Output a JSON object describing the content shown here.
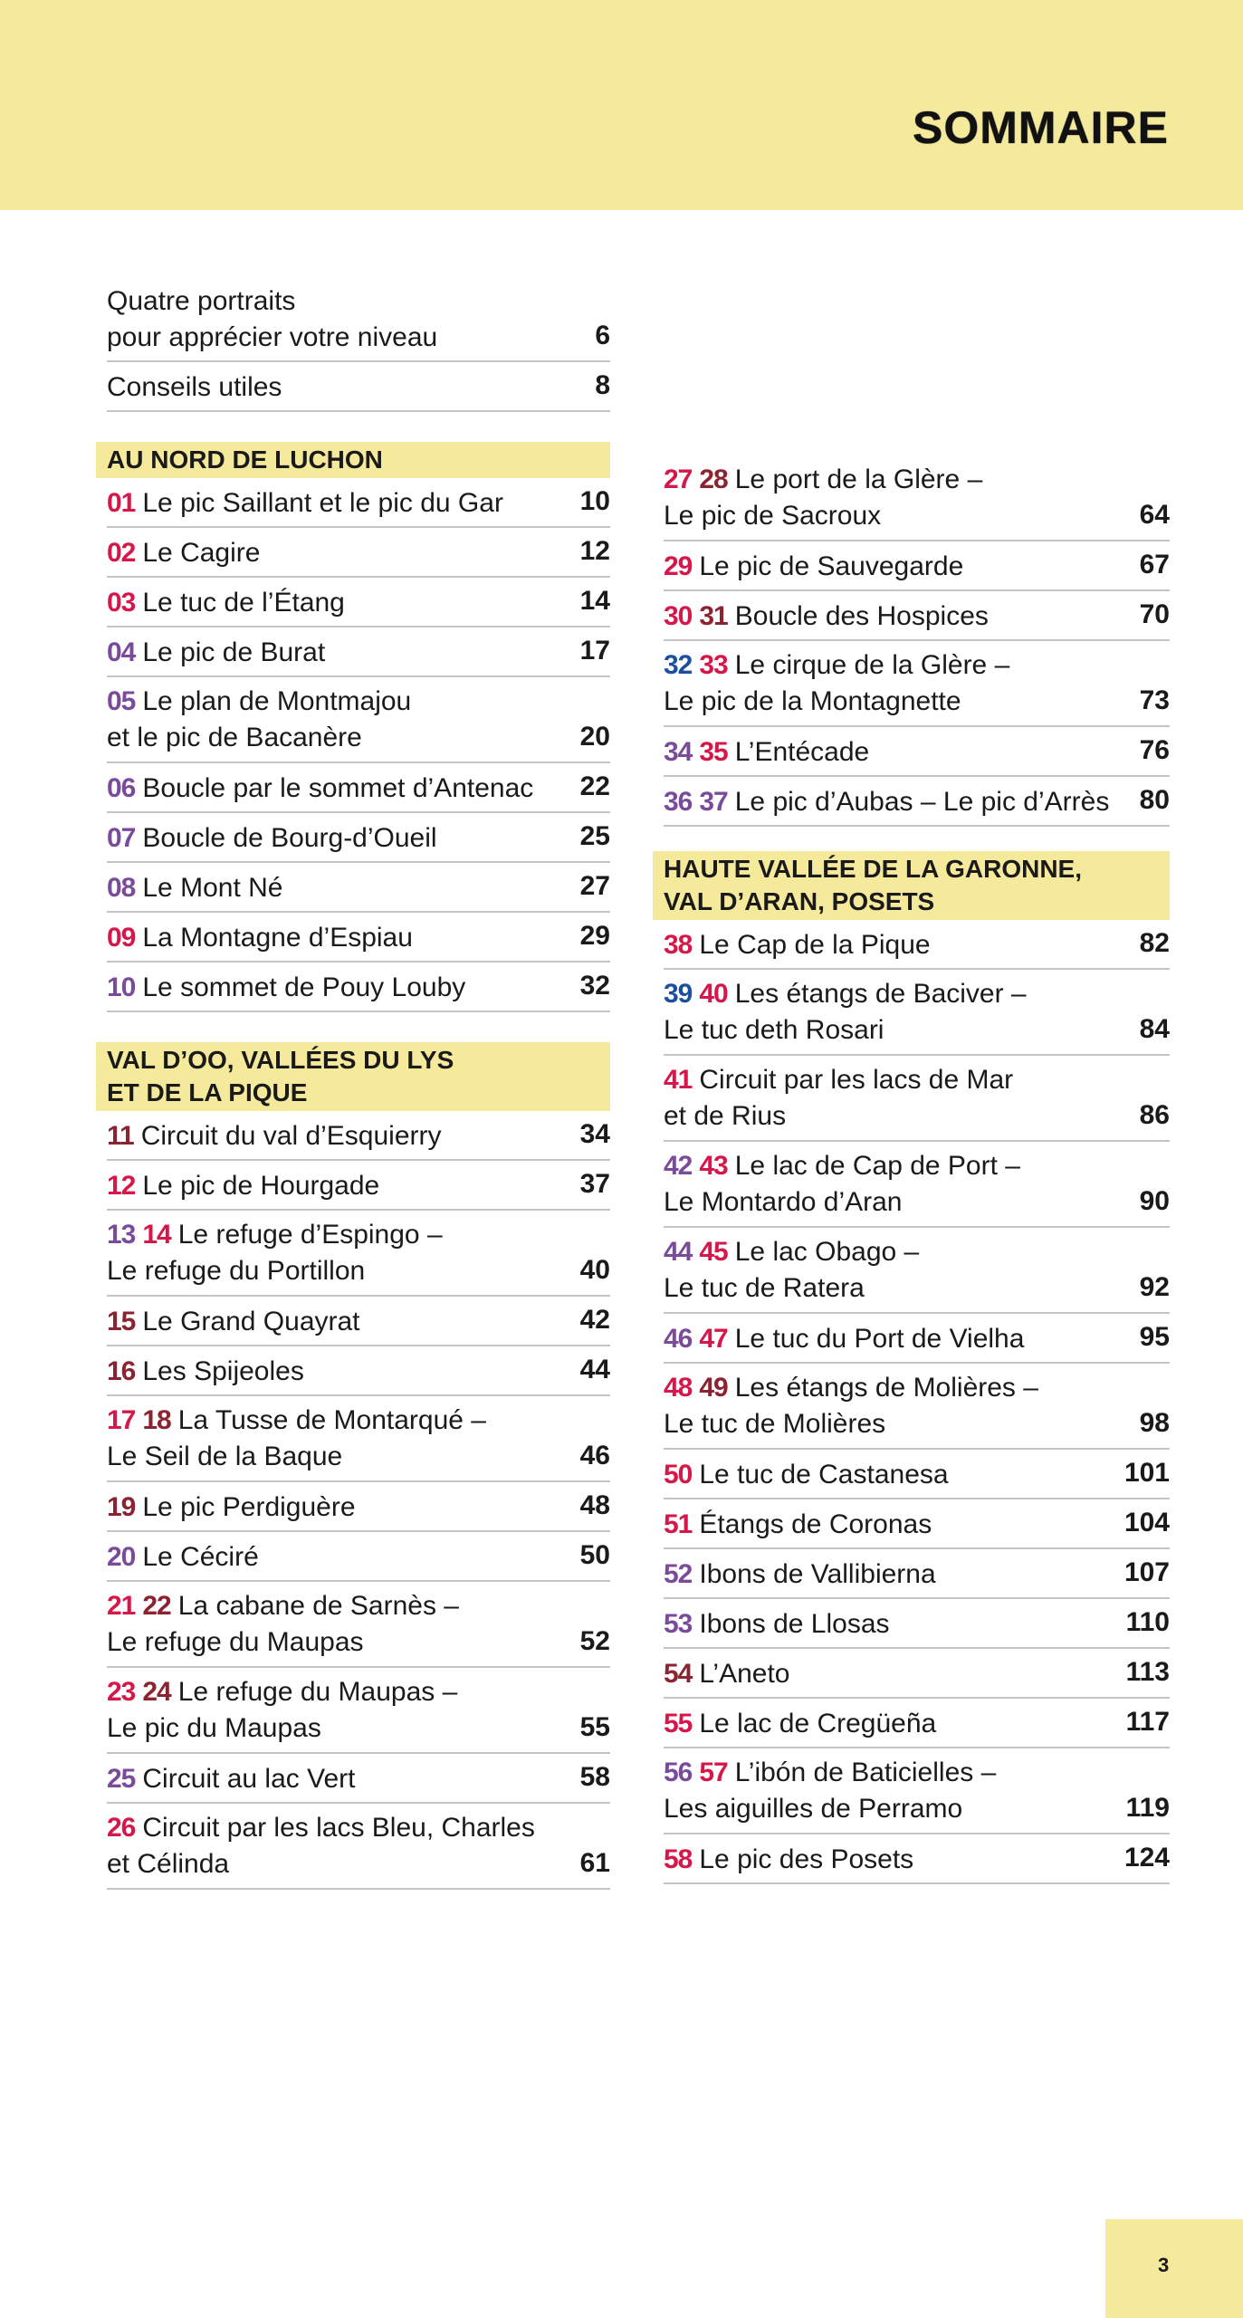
{
  "header": {
    "title": "SOMMAIRE"
  },
  "colors": {
    "red": "#d6174a",
    "purple": "#7a4a9b",
    "darkred": "#8b2330",
    "blue": "#1c4f9e",
    "band": "#f5e99c"
  },
  "intro": [
    {
      "lines": [
        "Quatre portraits",
        "pour apprécier votre niveau"
      ],
      "page": "6"
    },
    {
      "lines": [
        "Conseils utiles"
      ],
      "page": "8"
    }
  ],
  "sections": [
    {
      "title": [
        "AU NORD DE LUCHON"
      ],
      "items": [
        {
          "nums": [
            {
              "n": "01",
              "c": "red"
            }
          ],
          "lines": [
            "Le pic Saillant et le pic du Gar"
          ],
          "page": "10"
        },
        {
          "nums": [
            {
              "n": "02",
              "c": "red"
            }
          ],
          "lines": [
            "Le Cagire"
          ],
          "page": "12"
        },
        {
          "nums": [
            {
              "n": "03",
              "c": "red"
            }
          ],
          "lines": [
            "Le tuc de l’Étang"
          ],
          "page": "14"
        },
        {
          "nums": [
            {
              "n": "04",
              "c": "purple"
            }
          ],
          "lines": [
            "Le pic de Burat"
          ],
          "page": "17"
        },
        {
          "nums": [
            {
              "n": "05",
              "c": "purple"
            }
          ],
          "lines": [
            "Le plan de Montmajou",
            "et le pic de Bacanère"
          ],
          "page": "20"
        },
        {
          "nums": [
            {
              "n": "06",
              "c": "purple"
            }
          ],
          "lines": [
            "Boucle par le sommet d’Antenac"
          ],
          "page": "22"
        },
        {
          "nums": [
            {
              "n": "07",
              "c": "purple"
            }
          ],
          "lines": [
            "Boucle de Bourg-d’Oueil"
          ],
          "page": "25"
        },
        {
          "nums": [
            {
              "n": "08",
              "c": "purple"
            }
          ],
          "lines": [
            "Le Mont Né"
          ],
          "page": "27"
        },
        {
          "nums": [
            {
              "n": "09",
              "c": "red"
            }
          ],
          "lines": [
            "La Montagne d’Espiau"
          ],
          "page": "29"
        },
        {
          "nums": [
            {
              "n": "10",
              "c": "purple"
            }
          ],
          "lines": [
            "Le sommet de Pouy Louby"
          ],
          "page": "32"
        }
      ]
    },
    {
      "title": [
        "VAL D’OO, VALLÉES DU LYS",
        "ET DE LA PIQUE"
      ],
      "items": [
        {
          "nums": [
            {
              "n": "11",
              "c": "darkred"
            }
          ],
          "lines": [
            "Circuit du val d’Esquierry"
          ],
          "page": "34"
        },
        {
          "nums": [
            {
              "n": "12",
              "c": "red"
            }
          ],
          "lines": [
            "Le pic de Hourgade"
          ],
          "page": "37"
        },
        {
          "nums": [
            {
              "n": "13",
              "c": "purple"
            },
            {
              "n": "14",
              "c": "red"
            }
          ],
          "lines": [
            "Le refuge d’Espingo –",
            "Le refuge du Portillon"
          ],
          "page": "40"
        },
        {
          "nums": [
            {
              "n": "15",
              "c": "darkred"
            }
          ],
          "lines": [
            "Le Grand Quayrat"
          ],
          "page": "42"
        },
        {
          "nums": [
            {
              "n": "16",
              "c": "darkred"
            }
          ],
          "lines": [
            "Les Spijeoles"
          ],
          "page": "44"
        },
        {
          "nums": [
            {
              "n": "17",
              "c": "red"
            },
            {
              "n": "18",
              "c": "darkred"
            }
          ],
          "lines": [
            "La Tusse de Montarqué –",
            "Le Seil de la Baque"
          ],
          "page": "46"
        },
        {
          "nums": [
            {
              "n": "19",
              "c": "darkred"
            }
          ],
          "lines": [
            "Le pic Perdiguère"
          ],
          "page": "48"
        },
        {
          "nums": [
            {
              "n": "20",
              "c": "purple"
            }
          ],
          "lines": [
            "Le Céciré"
          ],
          "page": "50"
        },
        {
          "nums": [
            {
              "n": "21",
              "c": "red"
            },
            {
              "n": "22",
              "c": "darkred"
            }
          ],
          "lines": [
            "La cabane de Sarnès –",
            "Le refuge du Maupas"
          ],
          "page": "52"
        },
        {
          "nums": [
            {
              "n": "23",
              "c": "red"
            },
            {
              "n": "24",
              "c": "darkred"
            }
          ],
          "lines": [
            "Le refuge du Maupas –",
            "Le pic du Maupas"
          ],
          "page": "55"
        },
        {
          "nums": [
            {
              "n": "25",
              "c": "purple"
            }
          ],
          "lines": [
            "Circuit au lac Vert"
          ],
          "page": "58"
        },
        {
          "nums": [
            {
              "n": "26",
              "c": "red"
            }
          ],
          "lines": [
            "Circuit par les lacs Bleu, Charles",
            "et Célinda"
          ],
          "page": "61"
        }
      ]
    },
    {
      "title": [],
      "items": [
        {
          "nums": [
            {
              "n": "27",
              "c": "red"
            },
            {
              "n": "28",
              "c": "darkred"
            }
          ],
          "lines": [
            "Le port de la Glère –",
            "Le pic de Sacroux"
          ],
          "page": "64"
        },
        {
          "nums": [
            {
              "n": "29",
              "c": "red"
            }
          ],
          "lines": [
            "Le pic de Sauvegarde"
          ],
          "page": "67"
        },
        {
          "nums": [
            {
              "n": "30",
              "c": "red"
            },
            {
              "n": "31",
              "c": "darkred"
            }
          ],
          "lines": [
            "Boucle des Hospices"
          ],
          "page": "70"
        },
        {
          "nums": [
            {
              "n": "32",
              "c": "blue"
            },
            {
              "n": "33",
              "c": "red"
            }
          ],
          "lines": [
            "Le cirque de la Glère –",
            "Le pic de la Montagnette"
          ],
          "page": "73"
        },
        {
          "nums": [
            {
              "n": "34",
              "c": "purple"
            },
            {
              "n": "35",
              "c": "red"
            }
          ],
          "lines": [
            "L’Entécade"
          ],
          "page": "76"
        },
        {
          "nums": [
            {
              "n": "36",
              "c": "purple"
            },
            {
              "n": "37",
              "c": "purple"
            }
          ],
          "lines": [
            "Le pic d’Aubas – Le pic d’Arrès"
          ],
          "page": "80"
        }
      ]
    },
    {
      "title": [
        "HAUTE VALLÉE DE LA GARONNE,",
        "VAL D’ARAN, POSETS"
      ],
      "items": [
        {
          "nums": [
            {
              "n": "38",
              "c": "red"
            }
          ],
          "lines": [
            "Le Cap de la Pique"
          ],
          "page": "82"
        },
        {
          "nums": [
            {
              "n": "39",
              "c": "blue"
            },
            {
              "n": "40",
              "c": "red"
            }
          ],
          "lines": [
            "Les étangs de Baciver –",
            "Le tuc deth Rosari"
          ],
          "page": "84"
        },
        {
          "nums": [
            {
              "n": "41",
              "c": "red"
            }
          ],
          "lines": [
            "Circuit par les lacs de Mar",
            "et de Rius"
          ],
          "page": "86"
        },
        {
          "nums": [
            {
              "n": "42",
              "c": "purple"
            },
            {
              "n": "43",
              "c": "red"
            }
          ],
          "lines": [
            "Le lac de Cap de Port –",
            "Le Montardo d’Aran"
          ],
          "page": "90"
        },
        {
          "nums": [
            {
              "n": "44",
              "c": "purple"
            },
            {
              "n": "45",
              "c": "red"
            }
          ],
          "lines": [
            "Le lac Obago –",
            "Le tuc de Ratera"
          ],
          "page": "92"
        },
        {
          "nums": [
            {
              "n": "46",
              "c": "purple"
            },
            {
              "n": "47",
              "c": "red"
            }
          ],
          "lines": [
            "Le tuc du Port de Vielha"
          ],
          "page": "95"
        },
        {
          "nums": [
            {
              "n": "48",
              "c": "red"
            },
            {
              "n": "49",
              "c": "darkred"
            }
          ],
          "lines": [
            "Les étangs de Molières –",
            "Le tuc de Molières"
          ],
          "page": "98"
        },
        {
          "nums": [
            {
              "n": "50",
              "c": "red"
            }
          ],
          "lines": [
            "Le tuc de Castanesa"
          ],
          "page": "101"
        },
        {
          "nums": [
            {
              "n": "51",
              "c": "red"
            }
          ],
          "lines": [
            "Étangs de Coronas"
          ],
          "page": "104"
        },
        {
          "nums": [
            {
              "n": "52",
              "c": "purple"
            }
          ],
          "lines": [
            "Ibons de Vallibierna"
          ],
          "page": "107"
        },
        {
          "nums": [
            {
              "n": "53",
              "c": "purple"
            }
          ],
          "lines": [
            "Ibons de Llosas"
          ],
          "page": "110"
        },
        {
          "nums": [
            {
              "n": "54",
              "c": "darkred"
            }
          ],
          "lines": [
            "L’Aneto"
          ],
          "page": "113"
        },
        {
          "nums": [
            {
              "n": "55",
              "c": "red"
            }
          ],
          "lines": [
            "Le lac de Cregüeña"
          ],
          "page": "117"
        },
        {
          "nums": [
            {
              "n": "56",
              "c": "purple"
            },
            {
              "n": "57",
              "c": "red"
            }
          ],
          "lines": [
            "L’ibón de Baticielles –",
            "Les aiguilles de Perramo"
          ],
          "page": "119"
        },
        {
          "nums": [
            {
              "n": "58",
              "c": "red"
            }
          ],
          "lines": [
            "Le pic des Posets"
          ],
          "page": "124"
        }
      ]
    }
  ],
  "footer": {
    "page_number": "3"
  }
}
